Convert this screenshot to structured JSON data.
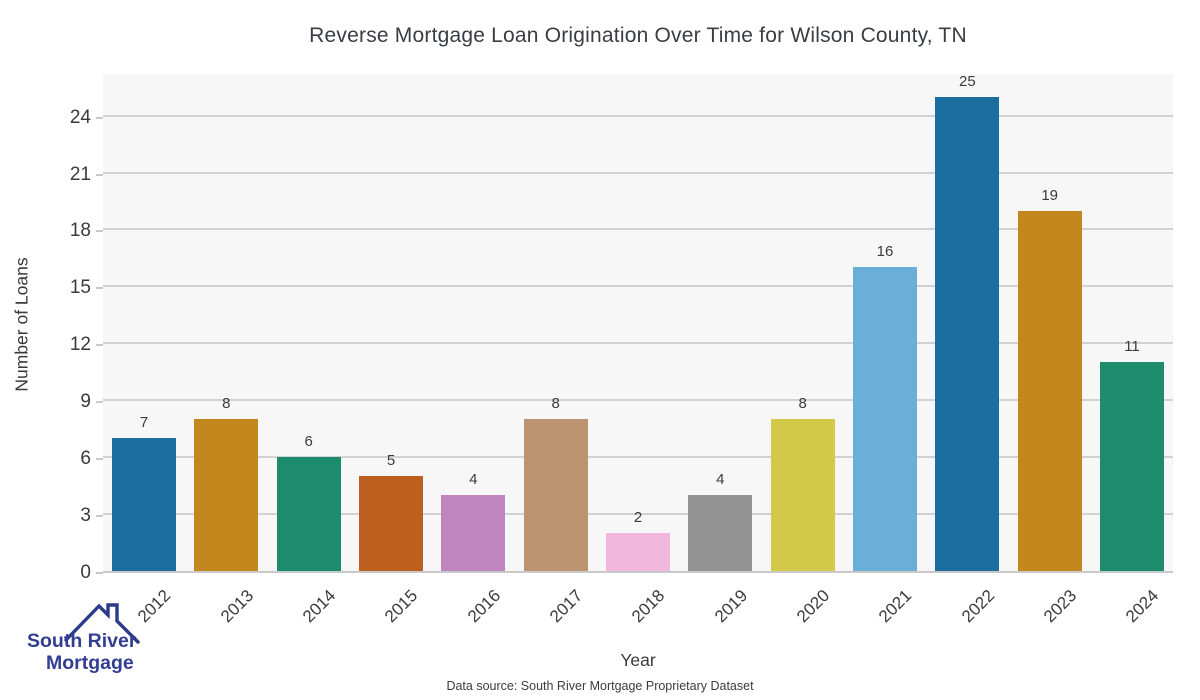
{
  "chart_data": {
    "type": "bar",
    "title": "Reverse Mortgage Loan Origination Over Time for Wilson County, TN",
    "xlabel": "Year",
    "ylabel": "Number of Loans",
    "categories": [
      "2012",
      "2013",
      "2014",
      "2015",
      "2016",
      "2017",
      "2018",
      "2019",
      "2020",
      "2021",
      "2022",
      "2023",
      "2024"
    ],
    "values": [
      7,
      8,
      6,
      5,
      4,
      8,
      2,
      4,
      8,
      16,
      25,
      19,
      11
    ],
    "bar_colors": [
      "#1c6da0",
      "#c4871d",
      "#1d8c6d",
      "#bd5f1e",
      "#c084bf",
      "#bd9471",
      "#f1b7dd",
      "#949494",
      "#d2c94b",
      "#69afd8",
      "#1c6da0",
      "#c4871d",
      "#1d8c6d"
    ],
    "yticks": [
      0,
      3,
      6,
      9,
      12,
      15,
      18,
      21,
      24
    ],
    "ylim": [
      0,
      26.3
    ],
    "grid": true,
    "legend": false,
    "plot_background": "#f7f7f7",
    "gridline_color": "#d2d2d2",
    "value_labels_shown": true
  },
  "footer": {
    "source_text": "Data source: South River Mortgage Proprietary Dataset"
  },
  "logo": {
    "line1": "South River",
    "line2": "Mortgage",
    "brand_color": "#333e93",
    "roof_color": "#2c3a8a"
  }
}
